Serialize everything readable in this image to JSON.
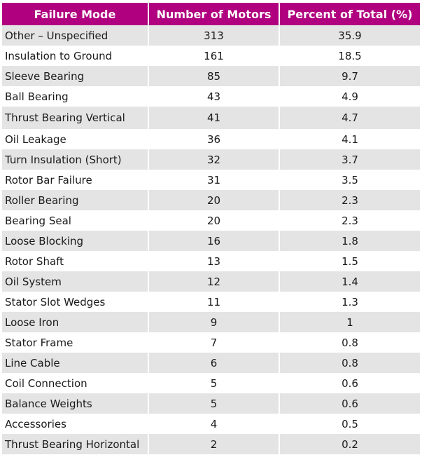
{
  "table": {
    "headers": [
      "Failure Mode",
      "Number of Motors",
      "Percent of Total (%)"
    ],
    "rows": [
      [
        "Other – Unspecified",
        "313",
        "35.9"
      ],
      [
        "Insulation to Ground",
        "161",
        "18.5"
      ],
      [
        "Sleeve Bearing",
        "85",
        "9.7"
      ],
      [
        "Ball Bearing",
        "43",
        "4.9"
      ],
      [
        "Thrust Bearing Vertical",
        "41",
        "4.7"
      ],
      [
        "Oil Leakage",
        "36",
        "4.1"
      ],
      [
        "Turn Insulation (Short)",
        "32",
        "3.7"
      ],
      [
        "Rotor Bar Failure",
        "31",
        "3.5"
      ],
      [
        "Roller Bearing",
        "20",
        "2.3"
      ],
      [
        "Bearing Seal",
        "20",
        "2.3"
      ],
      [
        "Loose Blocking",
        "16",
        "1.8"
      ],
      [
        "Rotor Shaft",
        "13",
        "1.5"
      ],
      [
        "Oil System",
        "12",
        "1.4"
      ],
      [
        "Stator Slot Wedges",
        "11",
        "1.3"
      ],
      [
        "Loose Iron",
        "9",
        "1"
      ],
      [
        "Stator Frame",
        "7",
        "0.8"
      ],
      [
        "Line Cable",
        "6",
        "0.8"
      ],
      [
        "Coil Connection",
        "5",
        "0.6"
      ],
      [
        "Balance Weights",
        "5",
        "0.6"
      ],
      [
        "Accessories",
        "4",
        "0.5"
      ],
      [
        "Thrust Bearing Horizontal",
        "2",
        "0.2"
      ]
    ]
  },
  "colors": {
    "header_background": "#b0007f",
    "header_text": "#ffffff",
    "stripe": "#e4e4e4"
  }
}
